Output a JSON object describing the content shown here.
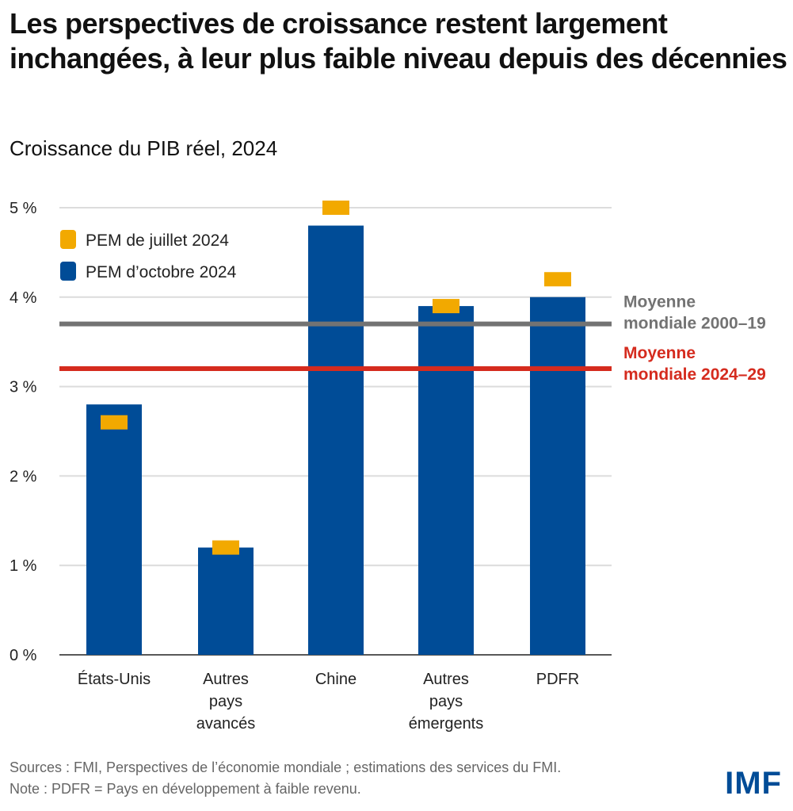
{
  "title": "Les perspectives de croissance restent largement inchangées, à leur plus faible niveau depuis des décennies",
  "subtitle": "Croissance du PIB réel, 2024",
  "chart_data": {
    "type": "bar",
    "categories": [
      [
        "États-Unis"
      ],
      [
        "Autres",
        "pays",
        "avancés"
      ],
      [
        "Chine"
      ],
      [
        "Autres",
        "pays",
        "émergents"
      ],
      [
        "PDFR"
      ]
    ],
    "series": [
      {
        "name": "PEM d’octobre 2024",
        "values": [
          2.8,
          1.2,
          4.8,
          3.9,
          4.0
        ],
        "color": "#004C97",
        "mark": "bar"
      },
      {
        "name": "PEM de juillet 2024",
        "values": [
          2.6,
          1.2,
          5.0,
          3.9,
          4.2
        ],
        "color": "#F2A900",
        "mark": "marker"
      }
    ],
    "reference_lines": [
      {
        "label": [
          "Moyenne",
          "mondiale 2000–19"
        ],
        "value": 3.7,
        "color": "#737373"
      },
      {
        "label": [
          "Moyenne",
          "mondiale 2024–29"
        ],
        "value": 3.2,
        "color": "#D52B1E"
      }
    ],
    "yticks": [
      "0 %",
      "1 %",
      "2 %",
      "3 %",
      "4 %",
      "5 %"
    ],
    "ylim": [
      0,
      5
    ],
    "grid": true,
    "legend": "top-left"
  },
  "footer": {
    "sources": "Sources : FMI, Perspectives de l’économie mondiale ; estimations des services du FMI.",
    "note": "Note : PDFR = Pays en développement à faible revenu."
  },
  "logo": "IMF"
}
